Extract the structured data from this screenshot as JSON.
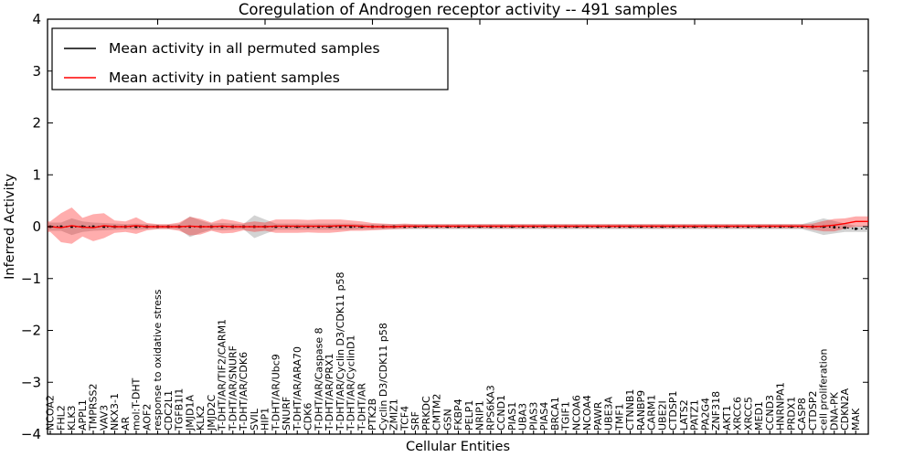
{
  "chart_data": {
    "type": "line",
    "title": "Coregulation of Androgen receptor activity -- 491 samples",
    "xlabel": "Cellular Entities",
    "ylabel": "Inferred Activity",
    "ylim": [
      -4,
      4
    ],
    "yticks": [
      4,
      3,
      2,
      1,
      0,
      -1,
      -2,
      -3,
      -4
    ],
    "ytick_labels": [
      "4",
      "3",
      "2",
      "1",
      "0",
      "−1",
      "−2",
      "−3",
      "−4"
    ],
    "grid": false,
    "legend_position": "upper left",
    "categories": [
      "NCOA2",
      "FHL2",
      "KLK3",
      "APPL1",
      "TMPRSS2",
      "VAV3",
      "NKX3-1",
      "AR",
      "mol:T-DHT",
      "AOF2",
      "response to oxidative stress",
      "CDC2L1",
      "TGFB1I1",
      "JMJD1A",
      "KLK2",
      "JMJD2C",
      "T-DHT/AR/TIF2/CARM1",
      "T-DHT/AR/SNURF",
      "T-DHT/AR/CDK6",
      "SVIL",
      "HIP1",
      "T-DHT/AR/Ubc9",
      "SNURF",
      "T-DHT/AR/ARA70",
      "CDK6",
      "T-DHT/AR/Caspase 8",
      "T-DHT/AR/PRX1",
      "T-DHT/AR/Cyclin D3/CDK11 p58",
      "T-DHT/AR/CyclinD1",
      "T-DHT/AR",
      "PTK2B",
      "Cyclin D3/CDK11 p58",
      "ZMIZ1",
      "TCF4",
      "SRF",
      "PRKDC",
      "CMTM2",
      "GSN",
      "FKBP4",
      "PELP1",
      "NRIP1",
      "RPS6KA3",
      "CCND1",
      "PIAS1",
      "UBA3",
      "PIAS3",
      "PIAS4",
      "BRCA1",
      "TGIF1",
      "NCOA6",
      "NCOA4",
      "PAWR",
      "UBE3A",
      "TMF1",
      "CTNNB1",
      "RANBP9",
      "CARM1",
      "UBE2I",
      "CTDSP1",
      "LATS2",
      "PATZ1",
      "PA2G4",
      "ZNF318",
      "AKT1",
      "XRCC6",
      "XRCC5",
      "MED1",
      "CCND3",
      "HNRNPA1",
      "PRDX1",
      "CASP8",
      "CTDSP2",
      "cell proliferation",
      "DNA-PK",
      "CDKN2A",
      "MAK"
    ],
    "series": [
      {
        "name": "Mean activity in all permuted samples",
        "color": "#000000",
        "line_style": "dotted",
        "marker": "square",
        "band_color": "rgba(128,128,128,0.35)",
        "values": [
          0,
          0,
          0,
          0,
          0,
          0,
          0,
          0,
          0,
          0,
          0,
          0,
          0,
          0,
          0,
          0,
          0,
          0,
          0,
          0,
          0,
          0,
          0,
          0,
          0,
          0,
          0,
          0,
          0,
          0,
          0,
          0,
          0,
          0,
          0,
          0,
          0,
          0,
          0,
          0,
          0,
          0,
          0,
          0,
          0,
          0,
          0,
          0,
          0,
          0,
          0,
          0,
          0,
          0,
          0,
          0,
          0,
          0,
          0,
          0,
          0,
          0,
          0,
          0,
          0,
          0,
          0,
          0,
          0,
          0,
          0,
          0,
          0,
          -0.01,
          -0.02,
          -0.04
        ],
        "band": [
          0.08,
          0.08,
          0.16,
          0.1,
          0.08,
          0.07,
          0.06,
          0.05,
          0.06,
          0.05,
          0.04,
          0.04,
          0.05,
          0.2,
          0.12,
          0.06,
          0.07,
          0.06,
          0.05,
          0.22,
          0.14,
          0.06,
          0.06,
          0.06,
          0.06,
          0.06,
          0.06,
          0.06,
          0.06,
          0.05,
          0.05,
          0.05,
          0.05,
          0.05,
          0.05,
          0.05,
          0.05,
          0.05,
          0.05,
          0.05,
          0.05,
          0.05,
          0.05,
          0.05,
          0.05,
          0.05,
          0.05,
          0.05,
          0.05,
          0.05,
          0.05,
          0.05,
          0.05,
          0.05,
          0.05,
          0.05,
          0.05,
          0.05,
          0.05,
          0.05,
          0.05,
          0.05,
          0.05,
          0.05,
          0.05,
          0.05,
          0.05,
          0.05,
          0.05,
          0.05,
          0.05,
          0.1,
          0.16,
          0.12,
          0.08,
          0.06
        ]
      },
      {
        "name": "Mean activity in patient samples",
        "color": "#ff0000",
        "line_style": "solid",
        "marker": "none",
        "band_color": "rgba(255,0,0,0.32)",
        "values": [
          0,
          -0.02,
          0.02,
          -0.01,
          -0.02,
          0.02,
          0,
          0,
          0.02,
          0,
          0,
          0,
          0,
          0.01,
          0,
          0,
          0.01,
          0,
          0,
          0,
          0,
          0.01,
          0.01,
          0.01,
          0.01,
          0.01,
          0.01,
          0.02,
          0.02,
          0.01,
          0,
          0,
          0,
          0.01,
          0.01,
          0.01,
          0.01,
          0.01,
          0.01,
          0.01,
          0.01,
          0.01,
          0.01,
          0.01,
          0.01,
          0.01,
          0.01,
          0.01,
          0.01,
          0.01,
          0.01,
          0.01,
          0.01,
          0.01,
          0.01,
          0.01,
          0.01,
          0.01,
          0.01,
          0.01,
          0.01,
          0.01,
          0.01,
          0.01,
          0.01,
          0.01,
          0.01,
          0.01,
          0.01,
          0.01,
          0.01,
          0,
          0.01,
          0.03,
          0.06,
          0.1
        ],
        "band": [
          0.1,
          0.28,
          0.35,
          0.18,
          0.26,
          0.24,
          0.12,
          0.1,
          0.16,
          0.07,
          0.05,
          0.05,
          0.08,
          0.18,
          0.15,
          0.08,
          0.14,
          0.12,
          0.07,
          0.1,
          0.08,
          0.13,
          0.13,
          0.13,
          0.12,
          0.13,
          0.13,
          0.12,
          0.1,
          0.09,
          0.07,
          0.06,
          0.05,
          0.05,
          0.04,
          0.04,
          0.04,
          0.04,
          0.04,
          0.04,
          0.04,
          0.04,
          0.04,
          0.04,
          0.04,
          0.04,
          0.04,
          0.04,
          0.04,
          0.04,
          0.04,
          0.04,
          0.04,
          0.04,
          0.04,
          0.04,
          0.04,
          0.04,
          0.04,
          0.04,
          0.04,
          0.04,
          0.04,
          0.04,
          0.04,
          0.04,
          0.04,
          0.04,
          0.04,
          0.04,
          0.04,
          0.06,
          0.1,
          0.12,
          0.1,
          0.1
        ]
      }
    ]
  }
}
